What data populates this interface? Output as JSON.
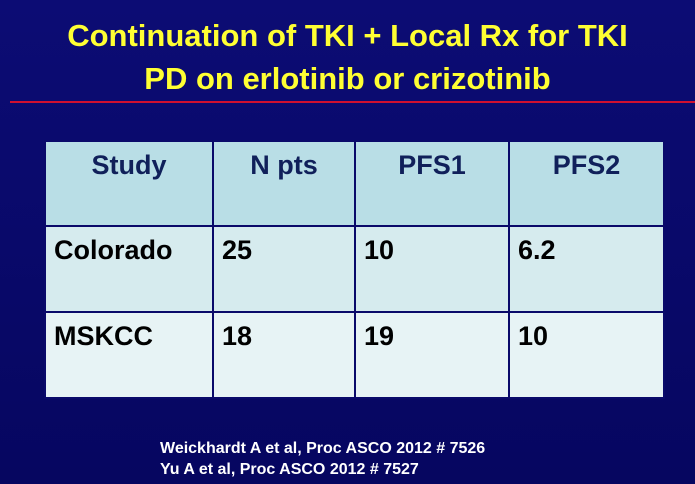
{
  "header": {
    "title_lines": [
      "Continuation of TKI + Local Rx for TKI",
      "PD on erlotinib or crizotinib"
    ]
  },
  "table": {
    "columns": [
      "Study",
      "N pts",
      "PFS1",
      "PFS2"
    ],
    "rows": [
      [
        "Colorado",
        25,
        10,
        6.2
      ],
      [
        "MSKCC",
        18,
        19,
        10
      ]
    ]
  },
  "references": [
    "Weickhardt A et al, Proc ASCO 2012 # 7526",
    "Yu A et al, Proc ASCO 2012 # 7527"
  ]
}
